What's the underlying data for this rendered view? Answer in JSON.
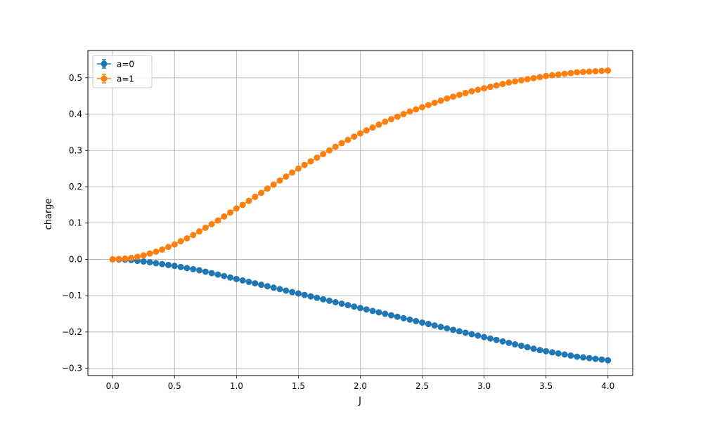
{
  "chart_data": {
    "type": "line",
    "xlabel": "J",
    "ylabel": "charge",
    "xlim": [
      -0.2,
      4.2
    ],
    "ylim": [
      -0.32,
      0.575
    ],
    "xticks": [
      0.0,
      0.5,
      1.0,
      1.5,
      2.0,
      2.5,
      3.0,
      3.5,
      4.0
    ],
    "xtick_labels": [
      "0.0",
      "0.5",
      "1.0",
      "1.5",
      "2.0",
      "2.5",
      "3.0",
      "3.5",
      "4.0"
    ],
    "yticks": [
      -0.3,
      -0.2,
      -0.1,
      0.0,
      0.1,
      0.2,
      0.3,
      0.4,
      0.5
    ],
    "ytick_labels": [
      "−0.3",
      "−0.2",
      "−0.1",
      "0.0",
      "0.1",
      "0.2",
      "0.3",
      "0.4",
      "0.5"
    ],
    "grid": true,
    "legend_position": "top-left",
    "markers": "circle with error bars",
    "x": [
      0.0,
      0.05,
      0.1,
      0.15,
      0.2,
      0.25,
      0.3,
      0.35,
      0.4,
      0.45,
      0.5,
      0.55,
      0.6,
      0.65,
      0.7,
      0.75,
      0.8,
      0.85,
      0.9,
      0.95,
      1.0,
      1.05,
      1.1,
      1.15,
      1.2,
      1.25,
      1.3,
      1.35,
      1.4,
      1.45,
      1.5,
      1.55,
      1.6,
      1.65,
      1.7,
      1.75,
      1.8,
      1.85,
      1.9,
      1.95,
      2.0,
      2.05,
      2.1,
      2.15,
      2.2,
      2.25,
      2.3,
      2.35,
      2.4,
      2.45,
      2.5,
      2.55,
      2.6,
      2.65,
      2.7,
      2.75,
      2.8,
      2.85,
      2.9,
      2.95,
      3.0,
      3.05,
      3.1,
      3.15,
      3.2,
      3.25,
      3.3,
      3.35,
      3.4,
      3.45,
      3.5,
      3.55,
      3.6,
      3.65,
      3.7,
      3.75,
      3.8,
      3.85,
      3.9,
      3.95,
      4.0
    ],
    "series": [
      {
        "name": "a=0",
        "color": "#1f77b4",
        "values": [
          0.0,
          -0.0005,
          -0.001,
          -0.002,
          -0.004,
          -0.006,
          -0.008,
          -0.0105,
          -0.013,
          -0.0155,
          -0.018,
          -0.021,
          -0.024,
          -0.027,
          -0.03,
          -0.034,
          -0.038,
          -0.042,
          -0.046,
          -0.05,
          -0.054,
          -0.058,
          -0.062,
          -0.066,
          -0.07,
          -0.074,
          -0.078,
          -0.082,
          -0.086,
          -0.09,
          -0.094,
          -0.098,
          -0.102,
          -0.106,
          -0.11,
          -0.114,
          -0.118,
          -0.122,
          -0.126,
          -0.13,
          -0.134,
          -0.138,
          -0.142,
          -0.146,
          -0.15,
          -0.154,
          -0.158,
          -0.162,
          -0.166,
          -0.17,
          -0.174,
          -0.178,
          -0.182,
          -0.186,
          -0.19,
          -0.194,
          -0.198,
          -0.202,
          -0.206,
          -0.21,
          -0.214,
          -0.218,
          -0.222,
          -0.226,
          -0.23,
          -0.234,
          -0.238,
          -0.242,
          -0.246,
          -0.25,
          -0.253,
          -0.256,
          -0.259,
          -0.262,
          -0.265,
          -0.268,
          -0.27,
          -0.272,
          -0.274,
          -0.276,
          -0.278
        ]
      },
      {
        "name": "a=1",
        "color": "#ff7f0e",
        "values": [
          0.0,
          0.001,
          0.002,
          0.004,
          0.007,
          0.011,
          0.016,
          0.021,
          0.027,
          0.034,
          0.041,
          0.05,
          0.058,
          0.067,
          0.077,
          0.087,
          0.097,
          0.107,
          0.118,
          0.129,
          0.14,
          0.15,
          0.161,
          0.172,
          0.183,
          0.195,
          0.206,
          0.217,
          0.228,
          0.239,
          0.25,
          0.26,
          0.27,
          0.28,
          0.29,
          0.3,
          0.31,
          0.32,
          0.329,
          0.338,
          0.347,
          0.355,
          0.363,
          0.371,
          0.379,
          0.386,
          0.393,
          0.4,
          0.407,
          0.413,
          0.419,
          0.425,
          0.431,
          0.437,
          0.443,
          0.448,
          0.453,
          0.458,
          0.463,
          0.467,
          0.471,
          0.475,
          0.479,
          0.483,
          0.487,
          0.49,
          0.493,
          0.496,
          0.499,
          0.502,
          0.505,
          0.507,
          0.509,
          0.511,
          0.513,
          0.515,
          0.516,
          0.517,
          0.518,
          0.519,
          0.52
        ]
      }
    ]
  }
}
